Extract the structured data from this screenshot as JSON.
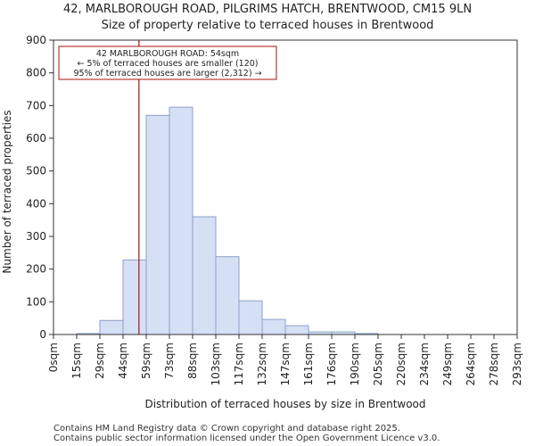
{
  "chart_data": {
    "type": "histogram",
    "title": "42, MARLBOROUGH ROAD, PILGRIMS HATCH, BRENTWOOD, CM15 9LN",
    "subtitle": "Size of property relative to terraced houses in Brentwood",
    "xlabel": "Distribution of terraced houses by size in Brentwood",
    "ylabel": "Number of terraced properties",
    "ylim": [
      0,
      900
    ],
    "yticks": [
      0,
      100,
      200,
      300,
      400,
      500,
      600,
      700,
      800,
      900
    ],
    "categories": [
      "0sqm",
      "15sqm",
      "29sqm",
      "44sqm",
      "59sqm",
      "73sqm",
      "88sqm",
      "103sqm",
      "117sqm",
      "132sqm",
      "147sqm",
      "161sqm",
      "176sqm",
      "190sqm",
      "205sqm",
      "220sqm",
      "234sqm",
      "249sqm",
      "264sqm",
      "278sqm",
      "293sqm"
    ],
    "values": [
      0,
      3,
      43,
      228,
      670,
      695,
      360,
      238,
      103,
      46,
      27,
      8,
      8,
      3,
      0,
      0,
      0,
      0,
      0,
      0
    ],
    "marker": {
      "value_sqm": 54,
      "line1": "42 MARLBOROUGH ROAD: 54sqm",
      "line2": "← 5% of terraced houses are smaller (120)",
      "line3": "95% of terraced houses are larger (2,312) →"
    },
    "colors": {
      "bar_fill": "#d6e0f5",
      "bar_stroke": "#8aa0c8",
      "marker_line": "#aa1111",
      "annot_border": "#aa1111",
      "axis": "#333333",
      "grid": "#b0b0b0"
    }
  },
  "footer": {
    "line1": "Contains HM Land Registry data © Crown copyright and database right 2025.",
    "line2": "Contains public sector information licensed under the Open Government Licence v3.0."
  }
}
